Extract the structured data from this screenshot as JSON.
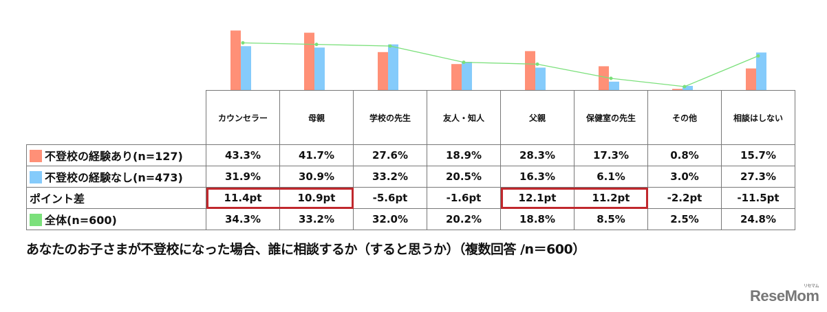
{
  "colors": {
    "with_experience": "#ff9077",
    "without_experience": "#85cbfb",
    "overall": "#7be07b",
    "highlight_border": "#c0282d",
    "grid": "#777777"
  },
  "table": {
    "columns": [
      "カウンセラー",
      "母親",
      "学校の先生",
      "友人・知人",
      "父親",
      "保健室の先生",
      "その他",
      "相談はしない"
    ],
    "rows": [
      {
        "label": "不登校の経験あり(n=127)",
        "swatch": "#ff9077",
        "values": [
          "43.3%",
          "41.7%",
          "27.6%",
          "18.9%",
          "28.3%",
          "17.3%",
          "0.8%",
          "15.7%"
        ]
      },
      {
        "label": "不登校の経験なし(n=473)",
        "swatch": "#85cbfb",
        "values": [
          "31.9%",
          "30.9%",
          "33.2%",
          "20.5%",
          "16.3%",
          "6.1%",
          "3.0%",
          "27.3%"
        ]
      },
      {
        "label": "ポイント差",
        "swatch": null,
        "values": [
          "11.4pt",
          "10.9pt",
          "-5.6pt",
          "-1.6pt",
          "12.1pt",
          "11.2pt",
          "-2.2pt",
          "-11.5pt"
        ]
      },
      {
        "label": "全体(n=600)",
        "swatch": "#7be07b",
        "values": [
          "34.3%",
          "33.2%",
          "32.0%",
          "20.2%",
          "18.8%",
          "8.5%",
          "2.5%",
          "24.8%"
        ]
      }
    ],
    "highlighted_cells": [
      [
        "ポイント差",
        "カウンセラー"
      ],
      [
        "ポイント差",
        "母親"
      ],
      [
        "ポイント差",
        "父親"
      ],
      [
        "ポイント差",
        "保健室の先生"
      ]
    ]
  },
  "caption": "あなたのお子さまが不登校になった場合、誰に相談するか（すると思うか）（複数回答 /n＝600）",
  "logo": {
    "text": "ReseMom",
    "ruby": "リセマム"
  },
  "chart_data": {
    "type": "bar",
    "title": "あなたのお子さまが不登校になった場合、誰に相談するか（すると思うか）（複数回答 /n＝600）",
    "categories": [
      "カウンセラー",
      "母親",
      "学校の先生",
      "友人・知人",
      "父親",
      "保健室の先生",
      "その他",
      "相談はしない"
    ],
    "series": [
      {
        "name": "不登校の経験あり(n=127)",
        "type": "bar",
        "color": "#ff9077",
        "values": [
          43.3,
          41.7,
          27.6,
          18.9,
          28.3,
          17.3,
          0.8,
          15.7
        ]
      },
      {
        "name": "不登校の経験なし(n=473)",
        "type": "bar",
        "color": "#85cbfb",
        "values": [
          31.9,
          30.9,
          33.2,
          20.5,
          16.3,
          6.1,
          3.0,
          27.3
        ]
      },
      {
        "name": "全体(n=600)",
        "type": "line",
        "color": "#7be07b",
        "values": [
          34.3,
          33.2,
          32.0,
          20.2,
          18.8,
          8.5,
          2.5,
          24.8
        ]
      }
    ],
    "point_difference": [
      11.4,
      10.9,
      -5.6,
      -1.6,
      12.1,
      11.2,
      -2.2,
      -11.5
    ],
    "xlabel": "",
    "ylabel": "%",
    "ylim": [
      0,
      45
    ],
    "grid": false,
    "legend_position": "table-left"
  }
}
